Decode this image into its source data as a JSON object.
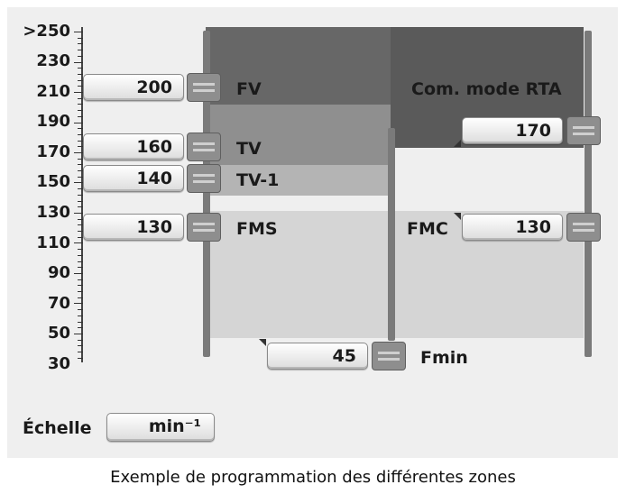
{
  "scale": {
    "labels": [
      ">250",
      "230",
      "210",
      "190",
      "170",
      "150",
      "130",
      "110",
      "90",
      "70",
      "50",
      "30"
    ]
  },
  "zones": {
    "fv": {
      "label": "FV",
      "value": "200"
    },
    "tv": {
      "label": "TV",
      "value": "160"
    },
    "tv1": {
      "label": "TV-1",
      "value": "140"
    },
    "fms": {
      "label": "FMS",
      "value": "130"
    },
    "fmin": {
      "label": "Fmin",
      "value": "45"
    },
    "com_rta": {
      "label": "Com. mode RTA",
      "value": "170"
    },
    "fmc": {
      "label": "FMC",
      "value": "130"
    }
  },
  "echelle": {
    "label": "Échelle",
    "value": "min⁻¹"
  },
  "caption": "Exemple de programmation des différentes zones",
  "colors": {
    "panel": "#efefef",
    "zone_fv": "#676767",
    "zone_tv": "#8f8f8f",
    "zone_tv1": "#b4b4b4",
    "zone_fms": "#d5d5d5",
    "zone_rta": "#5a5a5a"
  }
}
